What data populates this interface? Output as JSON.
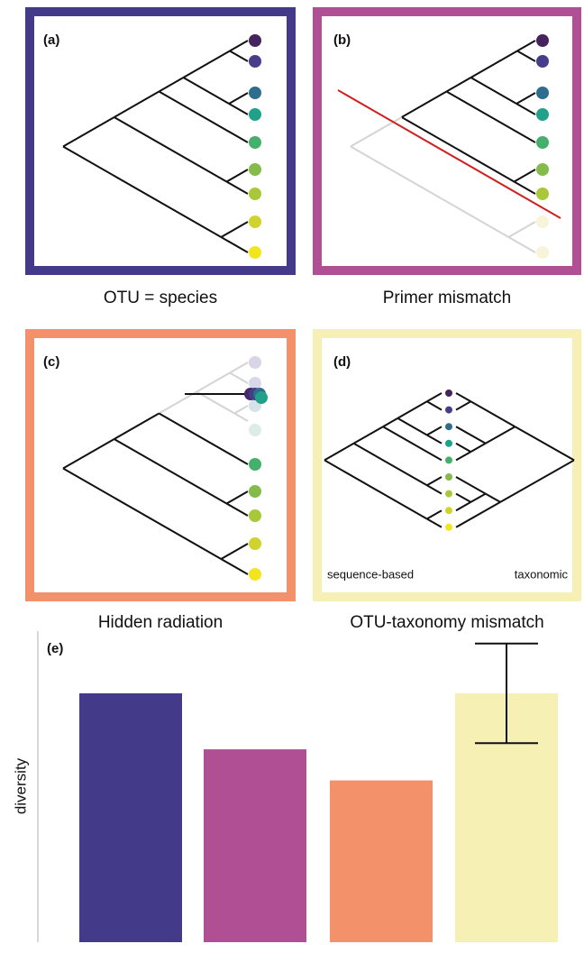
{
  "panels": [
    {
      "label": "(a)",
      "caption": "OTU = species"
    },
    {
      "label": "(b)",
      "caption": "Primer mismatch"
    },
    {
      "label": "(c)",
      "caption": "Hidden radiation"
    },
    {
      "label": "(d)",
      "caption": "OTU-taxonomy mismatch"
    }
  ],
  "panel_d_labels": [
    "sequence-based",
    "taxonomic"
  ],
  "chart_data": {
    "type": "bar",
    "label": "(e)",
    "ylabel": "diversity",
    "categories": [
      null,
      null,
      null,
      null
    ],
    "values": [
      80,
      62,
      52,
      80
    ],
    "errors": [
      null,
      null,
      null,
      16
    ],
    "colors": [
      "#443a8a",
      "#b04f94",
      "#f2916a",
      "#f7f0b5"
    ],
    "ylim": [
      0,
      100
    ]
  }
}
